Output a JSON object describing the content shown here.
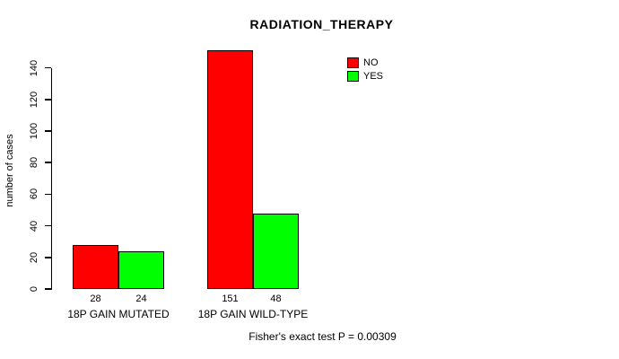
{
  "chart_data": {
    "type": "bar",
    "title": "RADIATION_THERAPY",
    "xlabel": "",
    "ylabel": "number of cases",
    "categories": [
      "18P GAIN MUTATED",
      "18P GAIN WILD-TYPE"
    ],
    "series": [
      {
        "name": "NO",
        "color": "#ff0000",
        "values": [
          28,
          151
        ]
      },
      {
        "name": "YES",
        "color": "#00ff00",
        "values": [
          24,
          48
        ]
      }
    ],
    "bar_value_labels": [
      [
        28,
        24
      ],
      [
        151,
        48
      ]
    ],
    "yticks": [
      0,
      20,
      40,
      60,
      80,
      100,
      120,
      140
    ],
    "ylim": [
      0,
      155
    ],
    "grid": false,
    "legend_position": "top-right",
    "annotation": "Fisher's exact test P = 0.00309"
  },
  "colors": {
    "background": "#ffffff",
    "axis": "#000000",
    "bar_border": "#000000",
    "no": "#ff0000",
    "yes": "#00ff00"
  }
}
